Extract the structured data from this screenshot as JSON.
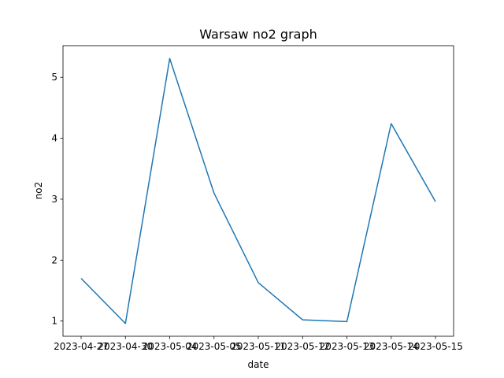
{
  "chart_data": {
    "type": "line",
    "title": "Warsaw no2 graph",
    "xlabel": "date",
    "ylabel": "no2",
    "x": [
      "2023-04-27",
      "2023-04-30",
      "2023-05-04",
      "2023-05-05",
      "2023-05-11",
      "2023-05-12",
      "2023-05-13",
      "2023-05-14",
      "2023-05-15"
    ],
    "x_tick_labels": [
      "2023-04-27",
      "2023-04-30",
      "2023-05-04",
      "2023-05-05",
      "2023-05-11",
      "2023-05-12",
      "2023-05-13",
      "2023-05-14",
      "2023-05-15"
    ],
    "series": [
      {
        "values": [
          1.7,
          0.96,
          5.31,
          3.1,
          1.63,
          1.02,
          0.99,
          4.24,
          2.96
        ],
        "color": "#1f77b4"
      }
    ],
    "ylim": [
      0.75,
      5.52
    ],
    "yticks": [
      1,
      2,
      3,
      4,
      5
    ],
    "grid": false,
    "legend": false
  }
}
